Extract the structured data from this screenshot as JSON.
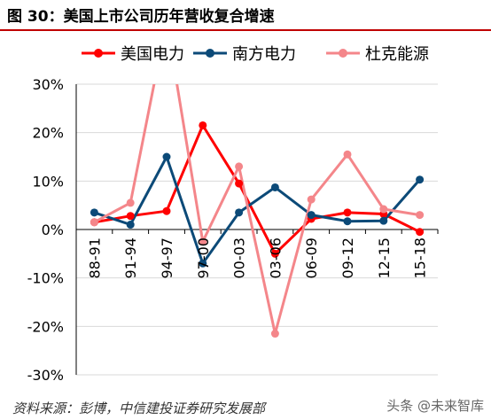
{
  "figure_title": "图 30：美国上市公司历年营收复合增速",
  "source": "资料来源：彭博，中信建投证券研究发展部",
  "watermark": "头条 @未来智库",
  "chart_data": {
    "type": "line",
    "categories": [
      "88-91",
      "91-94",
      "94-97",
      "97-00",
      "00-03",
      "03-06",
      "06-09",
      "09-12",
      "12-15",
      "15-18"
    ],
    "series": [
      {
        "name": "美国电力",
        "color": "#ff0000",
        "values": [
          1.5,
          2.8,
          3.8,
          21.5,
          9.5,
          -5.0,
          2.2,
          3.5,
          3.2,
          -0.5
        ]
      },
      {
        "name": "南方电力",
        "color": "#0c4a78",
        "values": [
          3.5,
          1.0,
          15.0,
          -7.0,
          3.5,
          8.7,
          3.0,
          1.7,
          1.8,
          10.3
        ]
      },
      {
        "name": "杜克能源",
        "color": "#f4868a",
        "values": [
          1.5,
          5.5,
          43.0,
          -2.5,
          13.0,
          -21.5,
          6.2,
          15.5,
          4.2,
          3.0
        ]
      }
    ],
    "ylim": [
      -30,
      30
    ],
    "yticks": [
      "-30%",
      "-20%",
      "-10%",
      "0%",
      "10%",
      "20%",
      "30%"
    ],
    "grid": true,
    "legend_position": "top"
  }
}
